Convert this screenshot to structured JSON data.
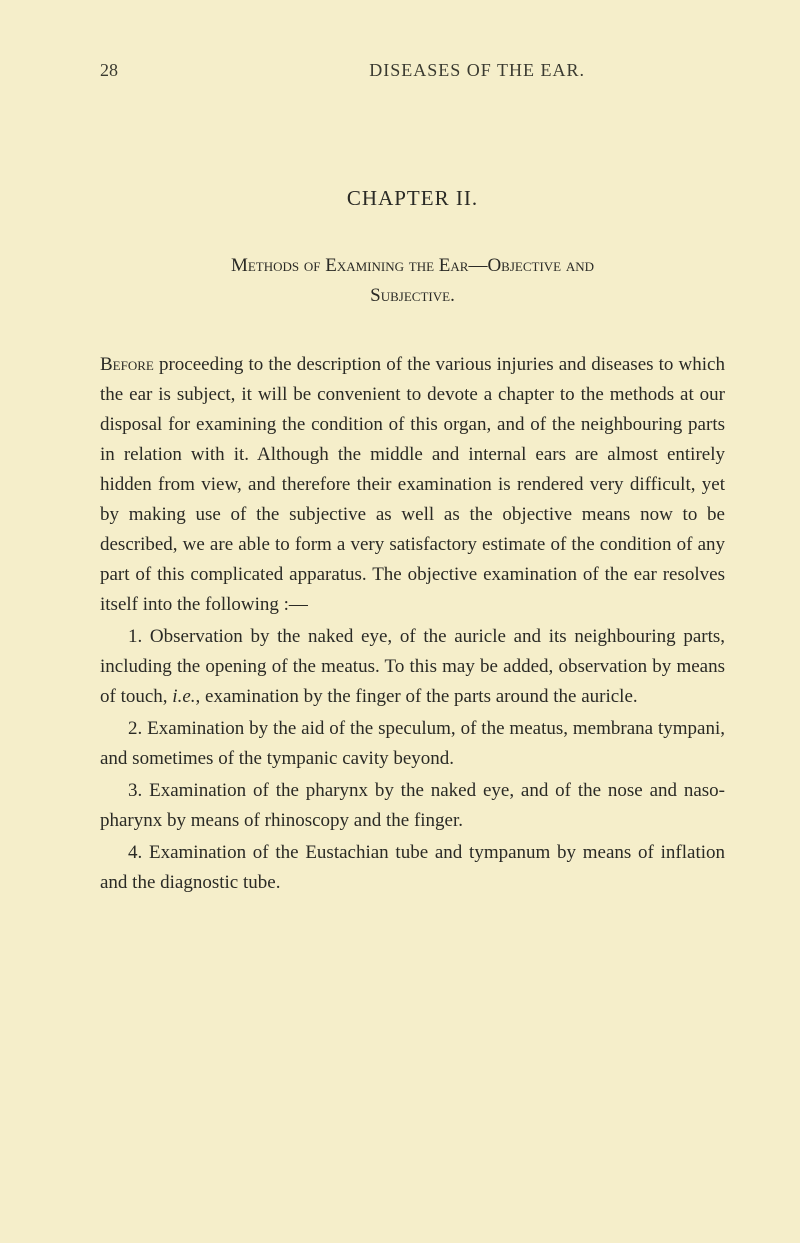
{
  "page_number": "28",
  "running_header": "DISEASES OF THE EAR.",
  "chapter_title": "CHAPTER II.",
  "subtitle_line1": "Methods of Examining the Ear—Objective and",
  "subtitle_line2": "Subjective.",
  "para1_firstword": "Before",
  "para1_rest": " proceeding to the description of the various injuries and diseases to which the ear is subject, it will be convenient to devote a chapter to the methods at our disposal for examining the condition of this organ, and of the neighbouring parts in relation with it. Although the middle and internal ears are almost entirely hidden from view, and therefore their examination is rendered very difficult, yet by making use of the subjective as well as the objective means now to be described, we are able to form a very satisfactory estimate of the condition of any part of this complicated apparatus. The objective examination of the ear resolves itself into the following :—",
  "para2_pre": "1. Observation by the naked eye, of the auricle and its neighbouring parts, including the opening of the meatus. To this may be added, observation by means of touch, ",
  "para2_ital": "i.e.",
  "para2_post": ", examination by the finger of the parts around the auricle.",
  "para3": "2. Examination by the aid of the speculum, of the meatus, membrana tympani, and sometimes of the tympanic cavity beyond.",
  "para4": "3. Examination of the pharynx by the naked eye, and of the nose and naso-pharynx by means of rhinoscopy and the finger.",
  "para5": "4. Examination of the Eustachian tube and tympanum by means of inflation and the diagnostic tube."
}
